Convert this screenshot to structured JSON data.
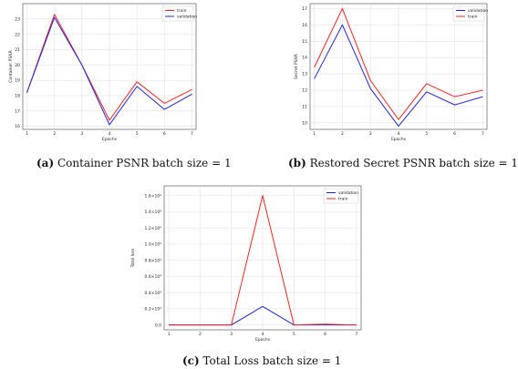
{
  "colors": {
    "train": "#ff2020",
    "validation": "#2020e0",
    "grid": "#dcdcdc"
  },
  "captions": [
    {
      "letter": "(a)",
      "text": " Container PSNR batch size = 1"
    },
    {
      "letter": "(b)",
      "text": " Restored Secret PSNR batch size = 1"
    },
    {
      "letter": "(c)",
      "text": " Total Loss batch size = 1"
    }
  ],
  "chart_data": [
    {
      "type": "line",
      "xlabel": "Epochs",
      "ylabel": "Container PSNR",
      "x": [
        1,
        2,
        3,
        4,
        5,
        6,
        7
      ],
      "xlim": [
        0.85,
        7.15
      ],
      "ylim": [
        15.8,
        24.0
      ],
      "yticks": [
        16,
        17,
        18,
        19,
        20,
        21,
        22,
        23
      ],
      "ytick_labels": [
        "16",
        "17",
        "18",
        "19",
        "20",
        "21",
        "22",
        "23"
      ],
      "legend_position": "top-right",
      "series": [
        {
          "name": "train",
          "color": "#ff2020",
          "values": [
            18.2,
            23.3,
            20.0,
            16.4,
            18.9,
            17.5,
            18.4
          ]
        },
        {
          "name": "validation",
          "color": "#2020e0",
          "values": [
            18.2,
            23.1,
            20.0,
            16.1,
            18.6,
            17.1,
            18.1
          ]
        }
      ]
    },
    {
      "type": "line",
      "xlabel": "Epochs",
      "ylabel": "Secret PSNR",
      "x": [
        1,
        2,
        3,
        4,
        5,
        6,
        7
      ],
      "xlim": [
        0.85,
        7.15
      ],
      "ylim": [
        9.6,
        17.3
      ],
      "yticks": [
        10,
        11,
        12,
        13,
        14,
        15,
        16,
        17
      ],
      "ytick_labels": [
        "10",
        "11",
        "12",
        "13",
        "14",
        "15",
        "16",
        "17"
      ],
      "legend_position": "top-right",
      "series": [
        {
          "name": "validation",
          "color": "#2020e0",
          "values": [
            12.7,
            16.0,
            12.1,
            9.8,
            11.9,
            11.1,
            11.6
          ]
        },
        {
          "name": "train",
          "color": "#ff2020",
          "values": [
            13.4,
            17.0,
            12.6,
            10.2,
            12.4,
            11.6,
            12.0
          ]
        }
      ]
    },
    {
      "type": "line",
      "xlabel": "Epochs",
      "ylabel": "Total loss",
      "x": [
        1,
        2,
        3,
        4,
        5,
        6,
        7
      ],
      "xlim": [
        0.85,
        7.15
      ],
      "ylim": [
        -0.06,
        1.72
      ],
      "yticks": [
        0.0,
        0.2,
        0.4,
        0.6,
        0.8,
        1.0,
        1.2,
        1.4,
        1.6
      ],
      "ytick_labels": [
        "0.0",
        "0.2×10⁴",
        "0.4×10⁴",
        "0.6×10⁴",
        "0.8×10⁴",
        "1.0×10⁴",
        "1.2×10⁴",
        "1.4×10⁴",
        "1.6×10⁴"
      ],
      "legend_position": "top-right",
      "series": [
        {
          "name": "validation",
          "color": "#2020e0",
          "values": [
            0.0,
            0.0,
            0.0,
            0.23,
            0.0,
            0.0,
            0.0
          ]
        },
        {
          "name": "train",
          "color": "#ff2020",
          "values": [
            0.0,
            0.0,
            0.0,
            1.6,
            0.0,
            0.01,
            0.0
          ]
        }
      ]
    }
  ]
}
